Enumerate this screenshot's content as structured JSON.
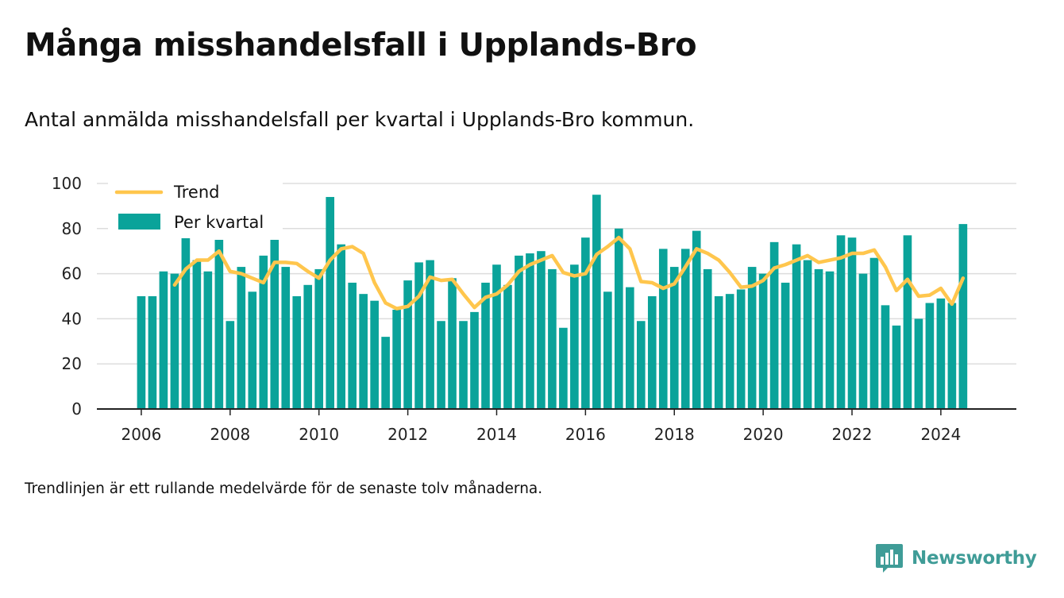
{
  "title": "Många misshandelsfall i Upplands-Bro",
  "subtitle": "Antal anmälda misshandelsfall per kvartal i Upplands-Bro kommun.",
  "footnote": "Trendlinjen är ett rullande medelvärde för de senaste tolv månaderna.",
  "brand": {
    "name": "Newsworthy",
    "icon": "newsworthy-logo-icon"
  },
  "colors": {
    "bar": "#0aa39a",
    "trend": "#ffc64d",
    "grid": "#dddddd",
    "axis": "#222222",
    "brand": "#3f9c97"
  },
  "chart_data": {
    "type": "bar",
    "title": "",
    "xlabel": "",
    "ylabel": "",
    "ylim": [
      0,
      100
    ],
    "yticks": [
      0,
      20,
      40,
      60,
      80,
      100
    ],
    "xticks": [
      2006,
      2008,
      2010,
      2012,
      2014,
      2016,
      2018,
      2020,
      2022,
      2024
    ],
    "xlim": [
      2005,
      2025.7
    ],
    "grid": true,
    "legend_position": "top-left",
    "x": [
      2006.0,
      2006.25,
      2006.5,
      2006.75,
      2007.0,
      2007.25,
      2007.5,
      2007.75,
      2008.0,
      2008.25,
      2008.5,
      2008.75,
      2009.0,
      2009.25,
      2009.5,
      2009.75,
      2010.0,
      2010.25,
      2010.5,
      2010.75,
      2011.0,
      2011.25,
      2011.5,
      2011.75,
      2012.0,
      2012.25,
      2012.5,
      2012.75,
      2013.0,
      2013.25,
      2013.5,
      2013.75,
      2014.0,
      2014.25,
      2014.5,
      2014.75,
      2015.0,
      2015.25,
      2015.5,
      2015.75,
      2016.0,
      2016.25,
      2016.5,
      2016.75,
      2017.0,
      2017.25,
      2017.5,
      2017.75,
      2018.0,
      2018.25,
      2018.5,
      2018.75,
      2019.0,
      2019.25,
      2019.5,
      2019.75,
      2020.0,
      2020.25,
      2020.5,
      2020.75,
      2021.0,
      2021.25,
      2021.5,
      2021.75,
      2022.0,
      2022.25,
      2022.5,
      2022.75,
      2023.0,
      2023.25,
      2023.5,
      2023.75,
      2024.0,
      2024.25,
      2024.5
    ],
    "series": [
      {
        "name": "Per kvartal",
        "type": "bar",
        "values": [
          50,
          50,
          61,
          60,
          76,
          66,
          61,
          75,
          39,
          63,
          52,
          68,
          75,
          63,
          50,
          55,
          62,
          94,
          73,
          56,
          51,
          48,
          32,
          44,
          57,
          65,
          66,
          39,
          58,
          39,
          43,
          56,
          64,
          55,
          68,
          69,
          70,
          62,
          36,
          64,
          76,
          95,
          52,
          80,
          54,
          39,
          50,
          71,
          63,
          71,
          79,
          62,
          50,
          51,
          53,
          63,
          60,
          74,
          56,
          73,
          66,
          62,
          61,
          77,
          76,
          60,
          67,
          46,
          37,
          77,
          40,
          47,
          49,
          47,
          82
        ]
      },
      {
        "name": "Trend",
        "type": "line",
        "values": [
          null,
          null,
          null,
          55,
          62,
          66,
          66,
          70,
          61,
          60,
          58,
          56,
          65,
          65,
          64.5,
          61,
          58,
          66,
          71,
          72,
          69,
          56,
          47,
          44.5,
          45.5,
          50,
          58.5,
          57,
          57.5,
          51,
          45,
          49.5,
          51,
          55,
          61,
          64,
          66,
          68,
          60.5,
          59,
          60,
          68.5,
          72,
          76,
          71,
          56.5,
          56,
          53.5,
          55.5,
          63,
          71,
          69,
          66,
          60.5,
          54,
          54.5,
          57,
          62.5,
          64,
          66,
          68,
          65,
          66,
          67,
          69,
          69,
          70.5,
          63,
          52.5,
          57.5,
          50,
          50.5,
          53.5,
          46.5,
          58
        ]
      }
    ]
  }
}
